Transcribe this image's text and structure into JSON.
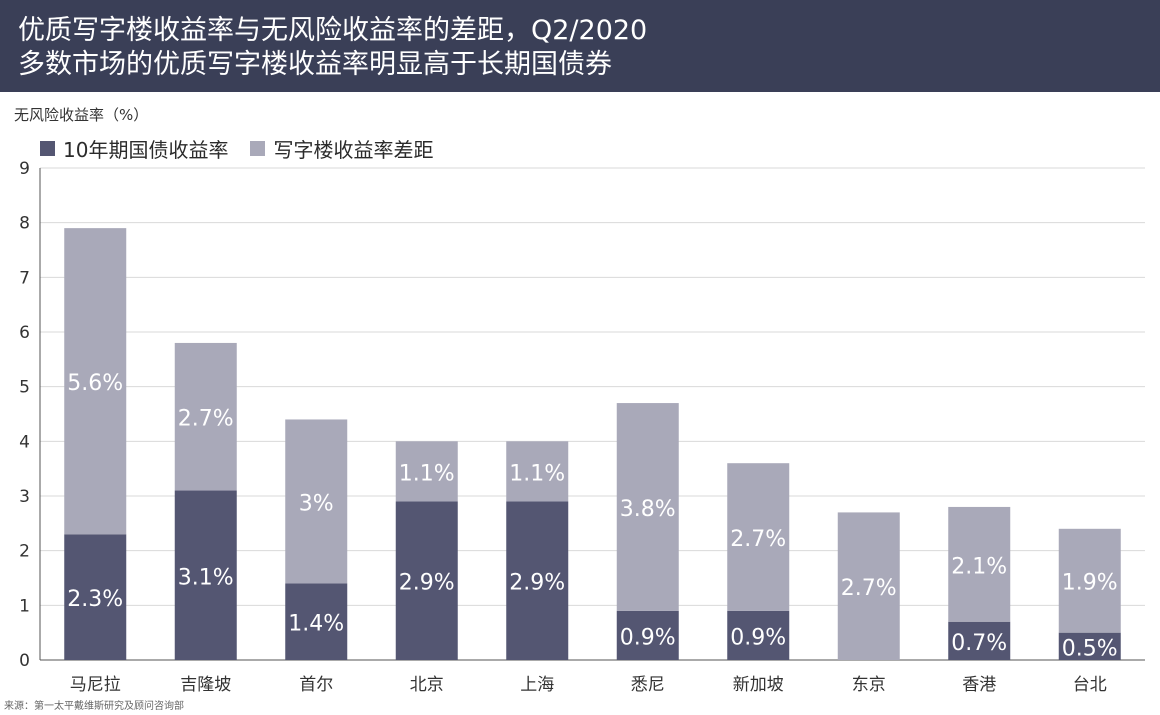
{
  "header": {
    "title": "优质写字楼收益率与无风险收益率的差距，Q2/2020",
    "subtitle": "多数市场的优质写字楼收益率明显高于长期国债券"
  },
  "source": "来源：第一太平戴维斯研究及顾问咨询部",
  "colors": {
    "header_bg": "#3a3f57",
    "bond": "#545672",
    "spread": "#a9a9b9",
    "grid": "#d9d9d9"
  },
  "chart_data": {
    "type": "bar",
    "stacked": true,
    "ylabel": "无风险收益率（%）",
    "ylim": [
      0,
      9
    ],
    "yticks": [
      0,
      1,
      2,
      3,
      4,
      5,
      6,
      7,
      8,
      9
    ],
    "grid": true,
    "legend_position": "top-left",
    "categories": [
      "马尼拉",
      "吉隆坡",
      "首尔",
      "北京",
      "上海",
      "悉尼",
      "新加坡",
      "东京",
      "香港",
      "台北"
    ],
    "series": [
      {
        "name": "10年期国债收益率",
        "color": "#545672",
        "values": [
          2.3,
          3.1,
          1.4,
          2.9,
          2.9,
          0.9,
          0.9,
          0.0,
          0.7,
          0.5
        ],
        "labels": [
          "2.3%",
          "3.1%",
          "1.4%",
          "2.9%",
          "2.9%",
          "0.9%",
          "0.9%",
          "",
          "0.7%",
          "0.5%"
        ]
      },
      {
        "name": "写字楼收益率差距",
        "color": "#a9a9b9",
        "values": [
          5.6,
          2.7,
          3.0,
          1.1,
          1.1,
          3.8,
          2.7,
          2.7,
          2.1,
          1.9
        ],
        "labels": [
          "5.6%",
          "2.7%",
          "3%",
          "1.1%",
          "1.1%",
          "3.8%",
          "2.7%",
          "2.7%",
          "2.1%",
          "1.9%"
        ]
      }
    ]
  }
}
